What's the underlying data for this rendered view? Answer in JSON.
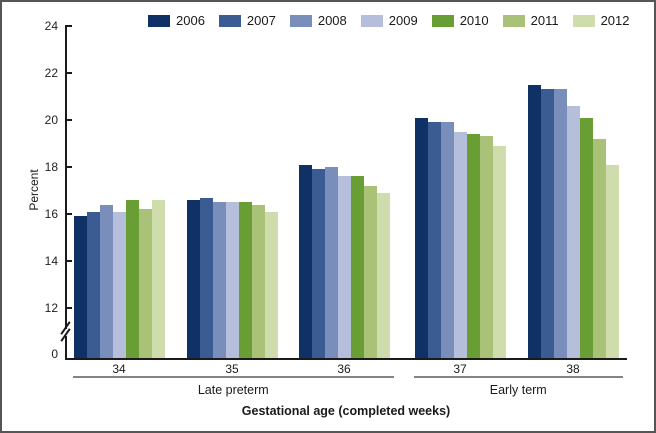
{
  "chart_data": {
    "type": "bar",
    "title": "",
    "ylabel": "Percent",
    "xlabel": "Gestational age (completed weeks)",
    "categories": [
      "34",
      "35",
      "36",
      "37",
      "38"
    ],
    "series": [
      {
        "name": "2006",
        "color": "#0f3166",
        "values": [
          15.9,
          16.6,
          18.1,
          20.1,
          21.5
        ]
      },
      {
        "name": "2007",
        "color": "#3b5c92",
        "values": [
          16.1,
          16.7,
          17.9,
          19.9,
          21.3
        ]
      },
      {
        "name": "2008",
        "color": "#7a8ebb",
        "values": [
          16.4,
          16.5,
          18.0,
          19.9,
          21.3
        ]
      },
      {
        "name": "2009",
        "color": "#b5bfdb",
        "values": [
          16.1,
          16.5,
          17.6,
          19.5,
          20.6
        ]
      },
      {
        "name": "2010",
        "color": "#689e33",
        "values": [
          16.6,
          16.5,
          17.6,
          19.4,
          20.1
        ]
      },
      {
        "name": "2011",
        "color": "#a9c278",
        "values": [
          16.2,
          16.4,
          17.2,
          19.3,
          19.2
        ]
      },
      {
        "name": "2012",
        "color": "#cfddad",
        "values": [
          16.6,
          16.1,
          16.9,
          18.9,
          18.1
        ]
      }
    ],
    "group_brackets": [
      {
        "label": "Late preterm",
        "from": "34",
        "to": "36"
      },
      {
        "label": "Early term",
        "from": "37",
        "to": "38"
      }
    ],
    "y_ticks": [
      24,
      22,
      20,
      18,
      16,
      14,
      12,
      0
    ],
    "ylim": [
      12,
      24
    ],
    "axis_break": true,
    "grid": false,
    "legend_position": "top"
  }
}
